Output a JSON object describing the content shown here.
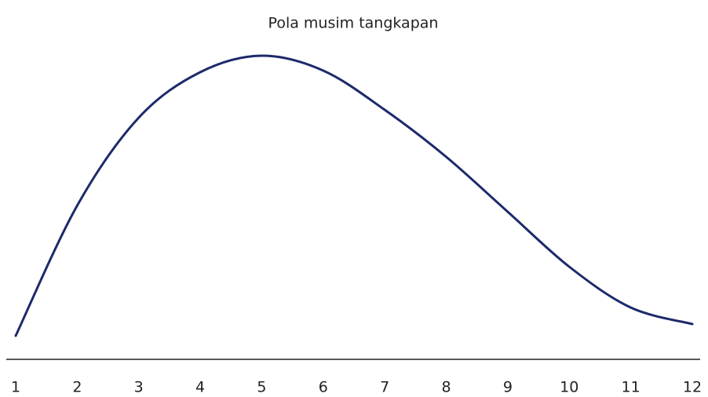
{
  "chart_data": {
    "type": "line",
    "title": "Pola musim tangkapan",
    "categories": [
      "1",
      "2",
      "3",
      "4",
      "5",
      "6",
      "7",
      "8",
      "9",
      "10",
      "11",
      "12"
    ],
    "series": [
      {
        "color": "#1c2a6b",
        "values": [
          7.5,
          49,
          77,
          91.5,
          96.75,
          92,
          79.5,
          64.5,
          47,
          29.5,
          16.5,
          11.25
        ]
      }
    ],
    "ylim": [
      0,
      100
    ]
  }
}
